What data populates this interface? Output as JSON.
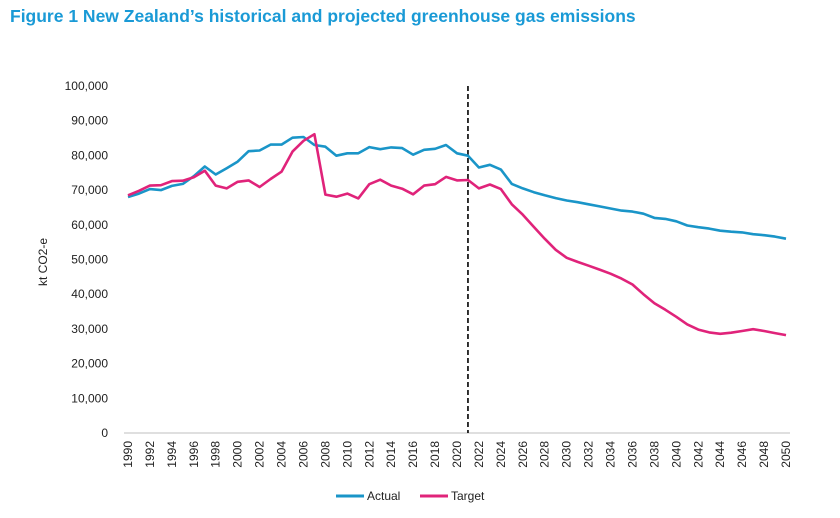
{
  "title": "Figure 1 New Zealand’s historical and projected greenhouse gas emissions",
  "chart_data": {
    "type": "line",
    "title": "Figure 1 New Zealand’s historical and projected greenhouse gas emissions",
    "xlabel": "",
    "ylabel": "kt CO2-e",
    "xlim": [
      1990,
      2050
    ],
    "ylim": [
      0,
      100000
    ],
    "yticks": [
      0,
      10000,
      20000,
      30000,
      40000,
      50000,
      60000,
      70000,
      80000,
      90000,
      100000
    ],
    "ytick_labels": [
      "0",
      "10,000",
      "20,000",
      "30,000",
      "40,000",
      "50,000",
      "60,000",
      "70,000",
      "80,000",
      "90,000",
      "100,000"
    ],
    "xticks": [
      1990,
      1992,
      1994,
      1996,
      1998,
      2000,
      2002,
      2004,
      2006,
      2008,
      2010,
      2012,
      2014,
      2016,
      2018,
      2020,
      2022,
      2024,
      2026,
      2028,
      2030,
      2032,
      2034,
      2036,
      2038,
      2040,
      2042,
      2044,
      2046,
      2048,
      2050
    ],
    "xtick_labels": [
      "1990",
      "1992",
      "1994",
      "1996",
      "1998",
      "2000",
      "2002",
      "2004",
      "2006",
      "2008",
      "2010",
      "2012",
      "2014",
      "2016",
      "2018",
      "2020",
      "2022",
      "2024",
      "2026",
      "2028",
      "2030",
      "2032",
      "2034",
      "2036",
      "2038",
      "2040",
      "2042",
      "2044",
      "2046",
      "2048",
      "2050"
    ],
    "vline_x": 2021,
    "grid": false,
    "legend_position": "bottom",
    "x": [
      1990,
      1991,
      1992,
      1993,
      1994,
      1995,
      1996,
      1997,
      1998,
      1999,
      2000,
      2001,
      2002,
      2003,
      2004,
      2005,
      2006,
      2007,
      2008,
      2009,
      2010,
      2011,
      2012,
      2013,
      2014,
      2015,
      2016,
      2017,
      2018,
      2019,
      2020,
      2021,
      2022,
      2023,
      2024,
      2025,
      2026,
      2027,
      2028,
      2029,
      2030,
      2031,
      2032,
      2033,
      2034,
      2035,
      2036,
      2037,
      2038,
      2039,
      2040,
      2041,
      2042,
      2043,
      2044,
      2045,
      2046,
      2047,
      2048,
      2049,
      2050
    ],
    "series": [
      {
        "name": "Actual",
        "color": "#1a95c8",
        "values": [
          68000,
          69000,
          70300,
          70000,
          71200,
          71800,
          74000,
          76800,
          74500,
          76300,
          78200,
          81200,
          81400,
          83100,
          83100,
          85100,
          85300,
          83000,
          82500,
          79900,
          80600,
          80600,
          82400,
          81800,
          82300,
          82100,
          80200,
          81600,
          81900,
          83000,
          80600,
          79900,
          76500,
          77300,
          75900,
          71800,
          70500,
          69400,
          68500,
          67700,
          67000,
          66500,
          65900,
          65300,
          64700,
          64100,
          63800,
          63200,
          62000,
          61700,
          61000,
          59800,
          59300,
          58900,
          58300,
          58000,
          57800,
          57300,
          57000,
          56600,
          56000
        ]
      },
      {
        "name": "Target",
        "color": "#e0237a",
        "values": [
          68500,
          69800,
          71300,
          71400,
          72600,
          72700,
          73700,
          75600,
          71300,
          70500,
          72400,
          72800,
          70900,
          73200,
          75300,
          81100,
          84200,
          86100,
          68700,
          68100,
          69000,
          67600,
          71700,
          73000,
          71300,
          70400,
          68800,
          71300,
          71700,
          73800,
          72800,
          72900,
          70500,
          71600,
          70300,
          65900,
          62900,
          59400,
          56000,
          52800,
          50500,
          49300,
          48200,
          47100,
          45900,
          44500,
          42800,
          40000,
          37400,
          35500,
          33500,
          31300,
          29800,
          29000,
          28600,
          28900,
          29400,
          29900,
          29400,
          28800,
          28200
        ]
      }
    ]
  }
}
